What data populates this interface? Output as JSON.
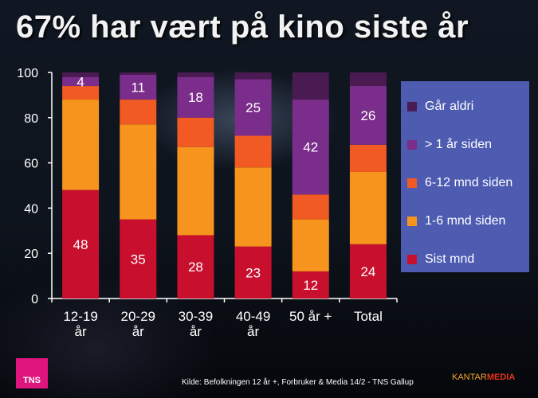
{
  "title": "67% har vært på kino siste år",
  "source": "Kilde: Befolkningen 12 år +, Forbruker & Media 14/2 - TNS Gallup",
  "logos": {
    "left": "TNS",
    "right_part1": "KANTAR",
    "right_part2": "MEDIA"
  },
  "chart_data": {
    "type": "bar",
    "stacked": true,
    "categories": [
      "12-19 år",
      "20-29 år",
      "30-39 år",
      "40-49 år",
      "50 år +",
      "Total"
    ],
    "series": [
      {
        "name": "Sist mnd",
        "color": "#c8102e",
        "values": [
          48,
          35,
          28,
          23,
          12,
          24
        ],
        "labels": [
          "48",
          "35",
          "28",
          "23",
          "12",
          "24"
        ]
      },
      {
        "name": "1-6 mnd siden",
        "color": "#f7941d",
        "values": [
          40,
          42,
          39,
          35,
          23,
          32
        ],
        "labels": [
          "",
          "",
          "",
          "",
          "",
          ""
        ]
      },
      {
        "name": "6-12 mnd siden",
        "color": "#f15a22",
        "values": [
          6,
          11,
          13,
          14,
          11,
          12
        ],
        "labels": [
          "",
          "",
          "",
          "",
          "",
          ""
        ]
      },
      {
        "name": "> 1 år siden",
        "color": "#7b2d8b",
        "values": [
          4,
          11,
          18,
          25,
          42,
          26
        ],
        "labels": [
          "4",
          "11",
          "18",
          "25",
          "42",
          "26"
        ]
      },
      {
        "name": "Går aldri",
        "color": "#4a1a52",
        "values": [
          2,
          1,
          2,
          3,
          12,
          6
        ],
        "labels": [
          "",
          "",
          "",
          "",
          "",
          ""
        ]
      }
    ],
    "yticks": [
      "0",
      "20",
      "40",
      "60",
      "80",
      "100"
    ],
    "ylim": [
      0,
      100
    ],
    "legend": "right",
    "grid": false
  }
}
